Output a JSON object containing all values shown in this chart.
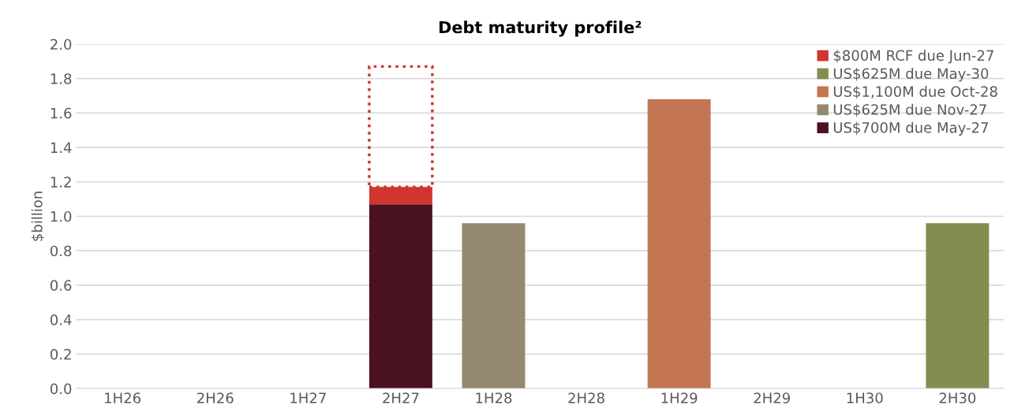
{
  "chart_data": {
    "type": "bar",
    "title": "Debt maturity profile²",
    "ylabel": "$billion",
    "categories": [
      "1H26",
      "2H26",
      "1H27",
      "2H27",
      "1H28",
      "2H28",
      "1H29",
      "2H29",
      "1H30",
      "2H30"
    ],
    "stacked": true,
    "series": [
      {
        "name": "US$700M due May-27",
        "color": "#4a121e",
        "values": [
          null,
          null,
          null,
          1.07,
          null,
          null,
          null,
          null,
          null,
          null
        ]
      },
      {
        "name": "US$625M due Nov-27",
        "color": "#948870",
        "values": [
          null,
          null,
          null,
          null,
          0.96,
          null,
          null,
          null,
          null,
          null
        ]
      },
      {
        "name": "US$1,100M due Oct-28",
        "color": "#c47552",
        "values": [
          null,
          null,
          null,
          null,
          null,
          null,
          1.68,
          null,
          null,
          null
        ]
      },
      {
        "name": "US$625M due May-30",
        "color": "#848c52",
        "values": [
          null,
          null,
          null,
          null,
          null,
          null,
          null,
          null,
          null,
          0.96
        ]
      },
      {
        "name": "$800M RCF due Jun-27",
        "color": "#d0352f",
        "values": [
          null,
          null,
          null,
          0.1,
          null,
          null,
          null,
          null,
          null,
          null
        ]
      },
      {
        "color": "#d0352f",
        "line_style": "dotted",
        "values": [
          null,
          null,
          null,
          0.7,
          null,
          null,
          null,
          null,
          null,
          null
        ]
      }
    ],
    "ylim": [
      0,
      2.0
    ],
    "yticks": [
      {
        "value": 0,
        "label": "0.0"
      },
      {
        "value": 0.2,
        "label": "0.2"
      },
      {
        "value": 0.4,
        "label": "0.4"
      },
      {
        "value": 0.6,
        "label": "0.6"
      },
      {
        "value": 0.8,
        "label": "0.8"
      },
      {
        "value": 1.0,
        "label": "1.0"
      },
      {
        "value": 1.2,
        "label": "1.2"
      },
      {
        "value": 1.4,
        "label": "1.4"
      },
      {
        "value": 1.6,
        "label": "1.6"
      },
      {
        "value": 1.8,
        "label": "1.8"
      },
      {
        "value": 2.0,
        "label": "2.0"
      }
    ],
    "grid": "y",
    "legend": "top right"
  }
}
